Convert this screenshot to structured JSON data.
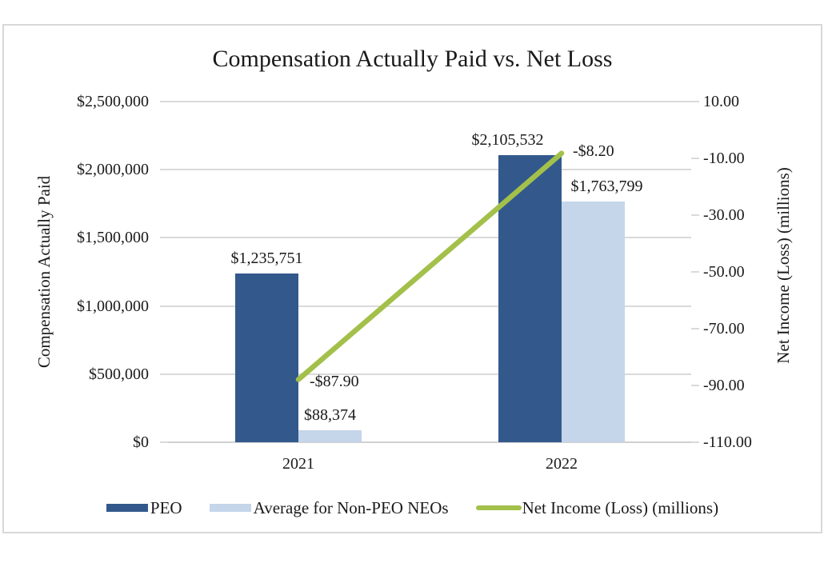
{
  "chart_data": {
    "type": "bar+line combo, dual axis",
    "title": "Compensation Actually Paid vs. Net Loss",
    "categories": [
      "2021",
      "2022"
    ],
    "series": [
      {
        "name": "PEO",
        "type": "bar",
        "axis": "left",
        "color": "#33598C",
        "values": [
          1235751,
          2105532
        ],
        "data_labels": [
          "$1,235,751",
          "$2,105,532"
        ]
      },
      {
        "name": "Average for Non-PEO NEOs",
        "type": "bar",
        "axis": "left",
        "color": "#C5D5EA",
        "values": [
          88374,
          1763799
        ],
        "data_labels": [
          "$88,374",
          "$1,763,799"
        ]
      },
      {
        "name": "Net Income (Loss) (millions)",
        "type": "line",
        "axis": "right",
        "color": "#A3C04A",
        "values": [
          -87.9,
          -8.2
        ],
        "data_labels": [
          "-$87.90",
          "-$8.20"
        ]
      }
    ],
    "left_axis": {
      "title": "Compensation Actually Paid",
      "min": 0,
      "max": 2500000,
      "ticks": [
        "$2,500,000",
        "$2,000,000",
        "$1,500,000",
        "$1,000,000",
        "$500,000",
        "$0"
      ]
    },
    "right_axis": {
      "title": "Net Income (Loss) (millions)",
      "min": -110,
      "max": 10,
      "ticks": [
        "10.00",
        "-10.00",
        "-30.00",
        "-50.00",
        "-70.00",
        "-90.00",
        "-110.00"
      ]
    },
    "legend": {
      "position": "bottom",
      "entries": [
        "PEO",
        "Average for Non-PEO NEOs",
        "Net Income (Loss) (millions)"
      ]
    },
    "grid": true,
    "colors": {
      "gridline": "#DADADA",
      "axis_line": "#D0D0D0",
      "figure_border": "#D8D8D8",
      "text": "#1A1A1A",
      "background": "#FFFFFF"
    }
  }
}
